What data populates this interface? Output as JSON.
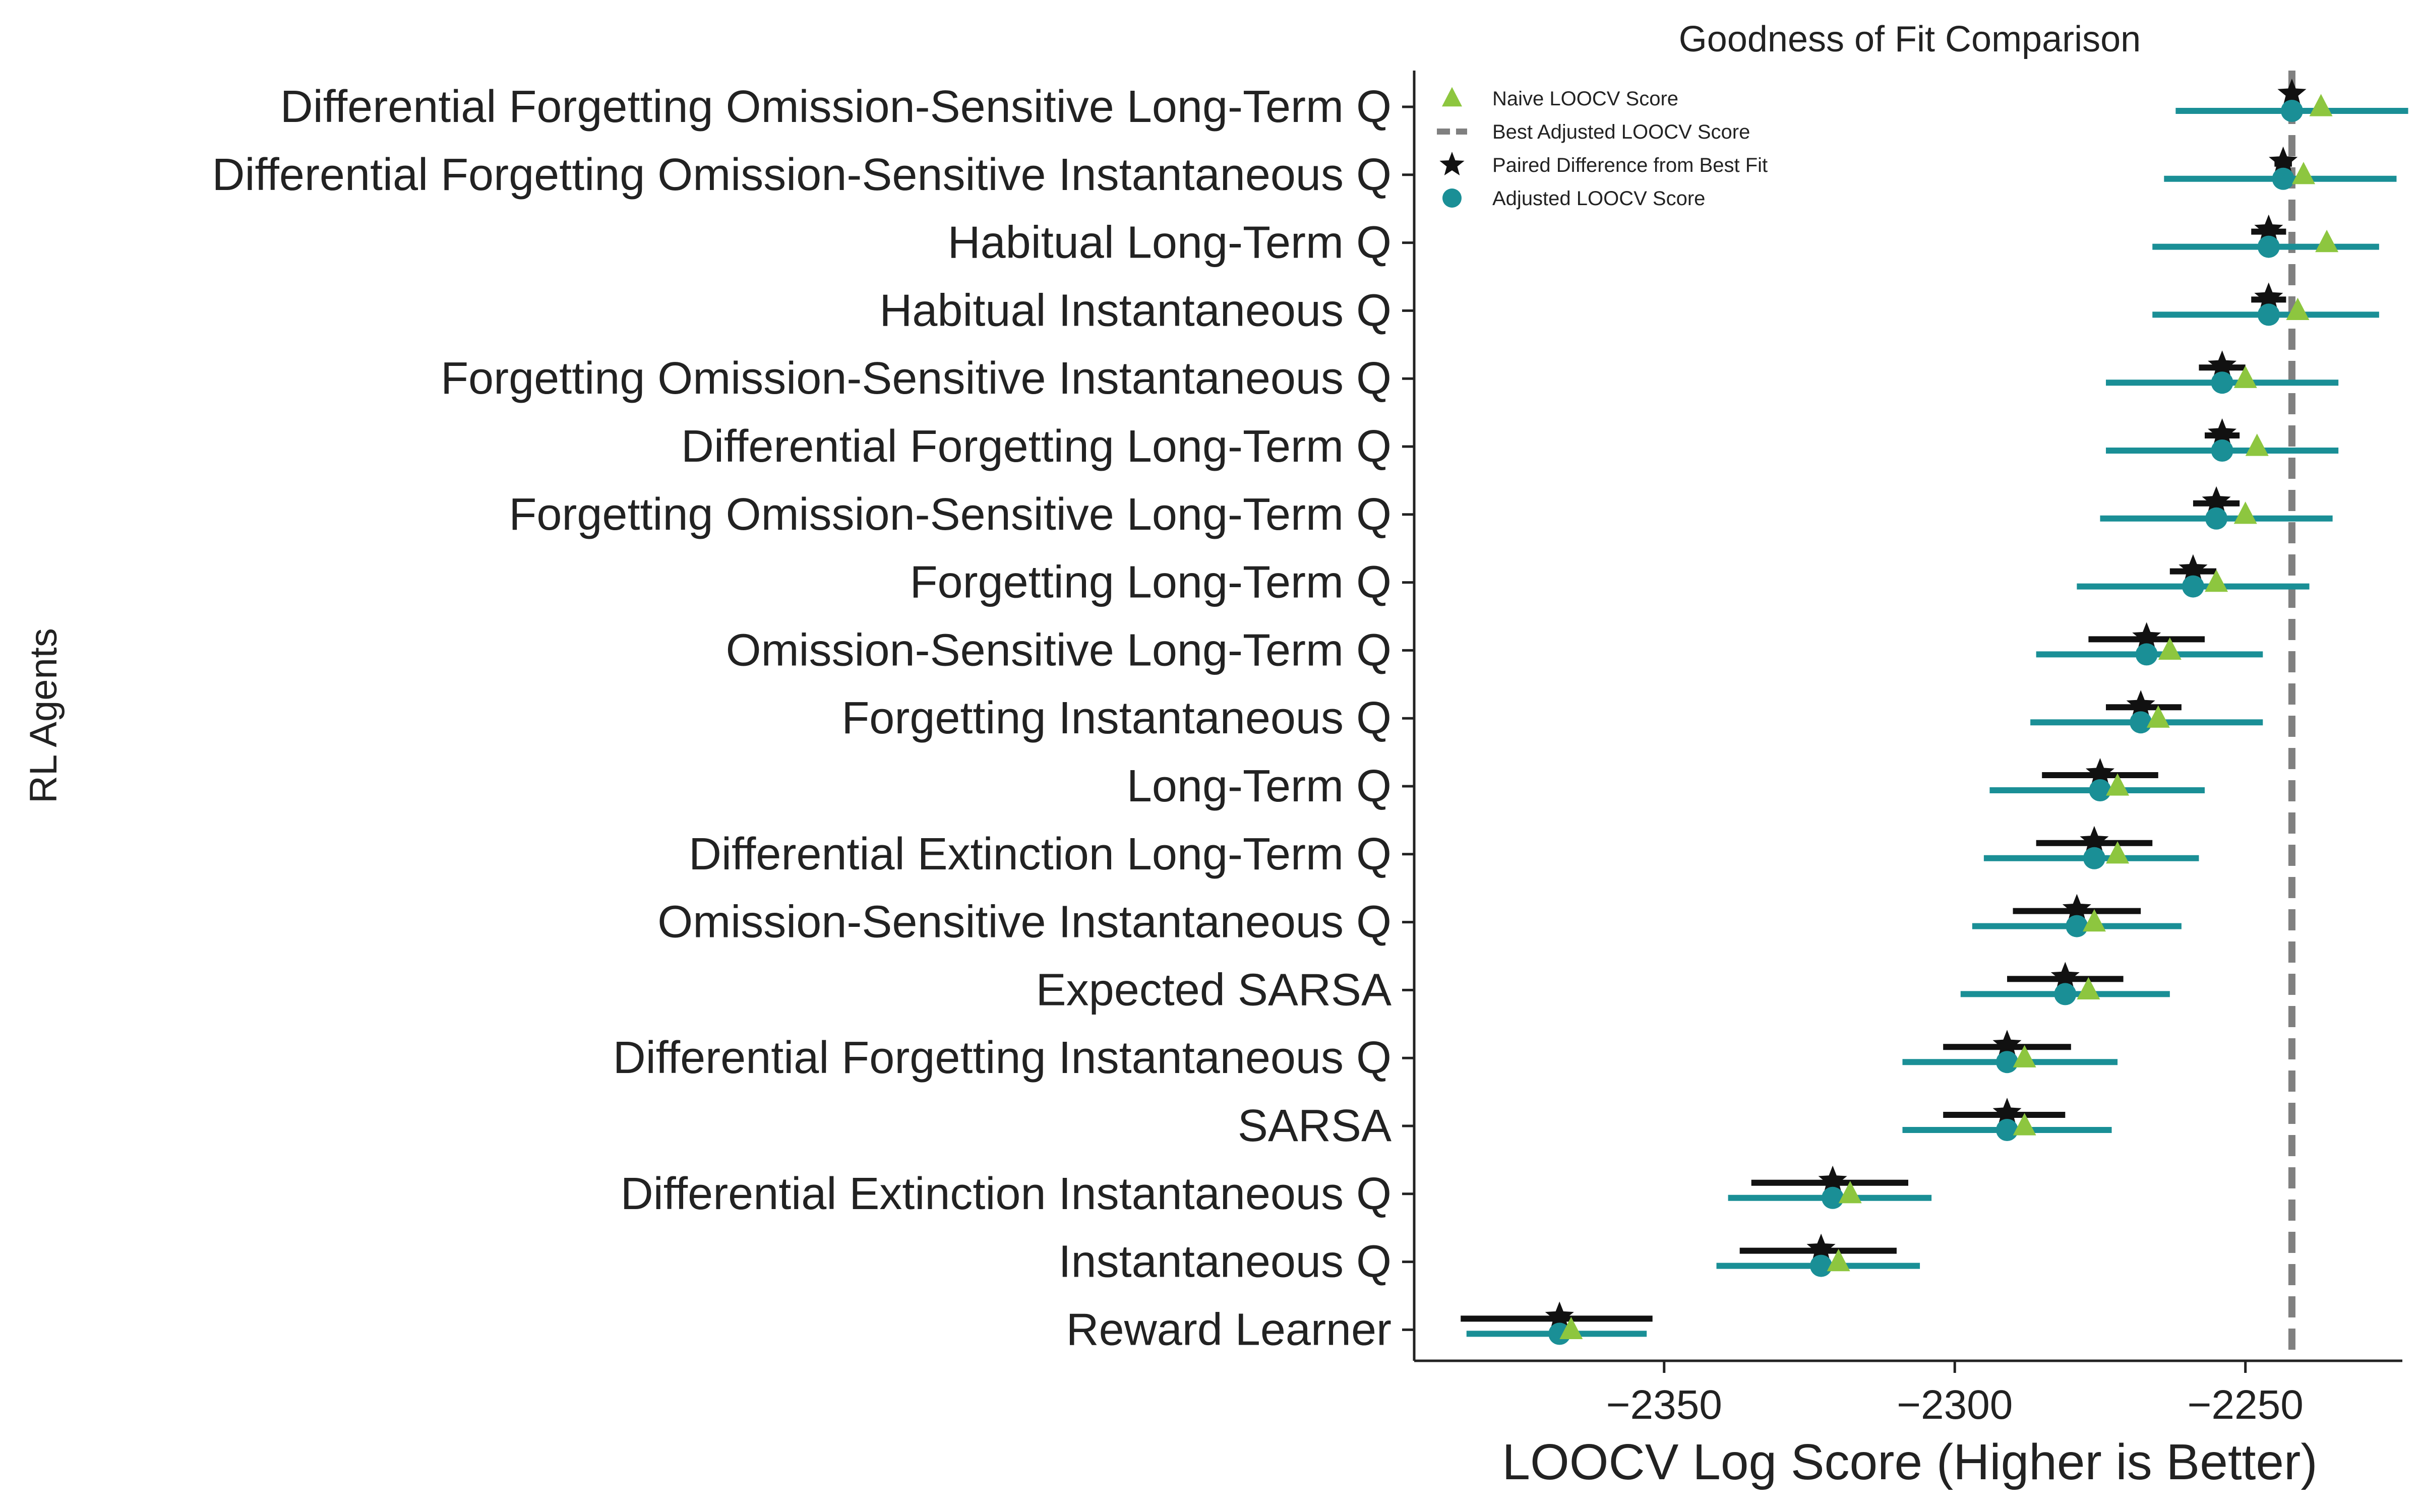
{
  "chart_data": {
    "type": "scatter",
    "title": "Goodness of Fit Comparison",
    "xlabel": "LOOCV Log Score (Higher is Better)",
    "ylabel": "RL Agents",
    "xlim": [
      -2393,
      -2223
    ],
    "xticks": [
      -2350,
      -2300,
      -2250
    ],
    "xtick_labels": [
      "−2350",
      "−2300",
      "−2250"
    ],
    "grid": false,
    "legend_placement": "top-left",
    "best_adjusted_loocv": -2242,
    "colors": {
      "naive": "#8dc63f",
      "adjusted": "#1a8f96",
      "paired": "#111111",
      "best_line": "#808080"
    },
    "legend": [
      {
        "key": "naive",
        "label": "Naive LOOCV Score"
      },
      {
        "key": "best",
        "label": "Best Adjusted LOOCV Score"
      },
      {
        "key": "paired",
        "label": "Paired Difference from Best Fit"
      },
      {
        "key": "adjusted",
        "label": "Adjusted LOOCV Score"
      }
    ],
    "agents": [
      {
        "name": "Differential Forgetting Omission-Sensitive Long-Term Q",
        "naive": -2237,
        "adjusted": -2242,
        "adj_lo": -2262,
        "adj_hi": -2222,
        "paired": -2242,
        "paired_lo": -2242,
        "paired_hi": -2242
      },
      {
        "name": "Differential Forgetting Omission-Sensitive Instantaneous Q",
        "naive": -2240,
        "adjusted": -2243.5,
        "adj_lo": -2264,
        "adj_hi": -2224,
        "paired": -2243.5,
        "paired_lo": -2245,
        "paired_hi": -2242
      },
      {
        "name": "Habitual Long-Term Q",
        "naive": -2236,
        "adjusted": -2246,
        "adj_lo": -2266,
        "adj_hi": -2227,
        "paired": -2246,
        "paired_lo": -2249,
        "paired_hi": -2243
      },
      {
        "name": "Habitual Instantaneous Q",
        "naive": -2241,
        "adjusted": -2246,
        "adj_lo": -2266,
        "adj_hi": -2227,
        "paired": -2246,
        "paired_lo": -2249,
        "paired_hi": -2243
      },
      {
        "name": "Forgetting Omission-Sensitive Instantaneous Q",
        "naive": -2250,
        "adjusted": -2254,
        "adj_lo": -2274,
        "adj_hi": -2234,
        "paired": -2254,
        "paired_lo": -2258,
        "paired_hi": -2250
      },
      {
        "name": "Differential Forgetting Long-Term Q",
        "naive": -2248,
        "adjusted": -2254,
        "adj_lo": -2274,
        "adj_hi": -2234,
        "paired": -2254,
        "paired_lo": -2257,
        "paired_hi": -2251
      },
      {
        "name": "Forgetting Omission-Sensitive Long-Term Q",
        "naive": -2250,
        "adjusted": -2255,
        "adj_lo": -2275,
        "adj_hi": -2235,
        "paired": -2255,
        "paired_lo": -2259,
        "paired_hi": -2251
      },
      {
        "name": "Forgetting Long-Term Q",
        "naive": -2255,
        "adjusted": -2259,
        "adj_lo": -2279,
        "adj_hi": -2239,
        "paired": -2259,
        "paired_lo": -2263,
        "paired_hi": -2255
      },
      {
        "name": "Omission-Sensitive Long-Term Q",
        "naive": -2263,
        "adjusted": -2267,
        "adj_lo": -2286,
        "adj_hi": -2247,
        "paired": -2267,
        "paired_lo": -2277,
        "paired_hi": -2257
      },
      {
        "name": "Forgetting Instantaneous Q",
        "naive": -2265,
        "adjusted": -2268,
        "adj_lo": -2287,
        "adj_hi": -2247,
        "paired": -2268,
        "paired_lo": -2274,
        "paired_hi": -2261
      },
      {
        "name": "Long-Term Q",
        "naive": -2272,
        "adjusted": -2275,
        "adj_lo": -2294,
        "adj_hi": -2257,
        "paired": -2275,
        "paired_lo": -2285,
        "paired_hi": -2265
      },
      {
        "name": "Differential Extinction Long-Term Q",
        "naive": -2272,
        "adjusted": -2276,
        "adj_lo": -2295,
        "adj_hi": -2258,
        "paired": -2276,
        "paired_lo": -2286,
        "paired_hi": -2266
      },
      {
        "name": "Omission-Sensitive Instantaneous Q",
        "naive": -2276,
        "adjusted": -2279,
        "adj_lo": -2297,
        "adj_hi": -2261,
        "paired": -2279,
        "paired_lo": -2290,
        "paired_hi": -2268
      },
      {
        "name": "Expected SARSA",
        "naive": -2277,
        "adjusted": -2281,
        "adj_lo": -2299,
        "adj_hi": -2263,
        "paired": -2281,
        "paired_lo": -2291,
        "paired_hi": -2271
      },
      {
        "name": "Differential Forgetting Instantaneous Q",
        "naive": -2288,
        "adjusted": -2291,
        "adj_lo": -2309,
        "adj_hi": -2272,
        "paired": -2291,
        "paired_lo": -2302,
        "paired_hi": -2280
      },
      {
        "name": "SARSA",
        "naive": -2288,
        "adjusted": -2291,
        "adj_lo": -2309,
        "adj_hi": -2273,
        "paired": -2291,
        "paired_lo": -2302,
        "paired_hi": -2281
      },
      {
        "name": "Differential Extinction Instantaneous Q",
        "naive": -2318,
        "adjusted": -2321,
        "adj_lo": -2339,
        "adj_hi": -2304,
        "paired": -2321,
        "paired_lo": -2335,
        "paired_hi": -2308
      },
      {
        "name": "Instantaneous Q",
        "naive": -2320,
        "adjusted": -2323,
        "adj_lo": -2341,
        "adj_hi": -2306,
        "paired": -2323,
        "paired_lo": -2337,
        "paired_hi": -2310
      },
      {
        "name": "Reward Learner",
        "naive": -2366,
        "adjusted": -2368,
        "adj_lo": -2384,
        "adj_hi": -2353,
        "paired": -2368,
        "paired_lo": -2385,
        "paired_hi": -2352
      }
    ]
  }
}
